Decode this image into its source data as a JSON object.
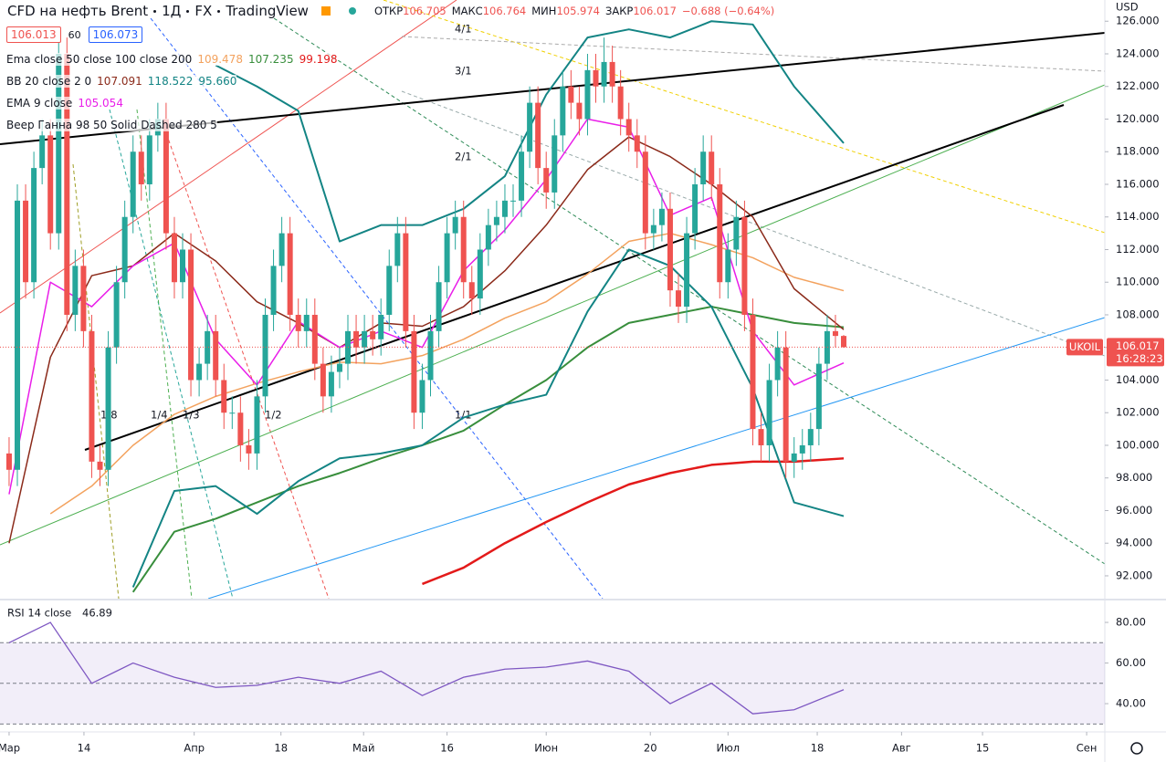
{
  "chart_data": [
    {
      "type": "candlestick",
      "title": "CFD на нефть Brent",
      "interval": "1Д",
      "exchange": "FX",
      "brand": "TradingView",
      "ohlc_keys": [
        "ОТКР",
        "МАКС",
        "МИН",
        "ЗАКР"
      ],
      "change": "−0.688 (−0.64%)",
      "bid": "106.013",
      "spread": "60",
      "ask": "106.073",
      "symbol_label": "UKOIL",
      "countdown": "16:28:23",
      "currency": "USD",
      "xlim": [
        -1.1,
        132.6
      ],
      "xticks": [
        {
          "value": 0,
          "label": "Мар"
        },
        {
          "value": 9.06,
          "label": "14"
        },
        {
          "value": 22.4,
          "label": "Апр"
        },
        {
          "value": 32.9,
          "label": "18"
        },
        {
          "value": 42.9,
          "label": "Май"
        },
        {
          "value": 53,
          "label": "16"
        },
        {
          "value": 65,
          "label": "Июн"
        },
        {
          "value": 77.6,
          "label": "20"
        },
        {
          "value": 87,
          "label": "Июл"
        },
        {
          "value": 97.8,
          "label": "18"
        },
        {
          "value": 108,
          "label": "Авг"
        },
        {
          "value": 117.8,
          "label": "15"
        },
        {
          "value": 130.4,
          "label": "Сен"
        }
      ],
      "ylim": [
        90.6,
        127.3
      ],
      "yticks": [
        {
          "value": 92,
          "label": "92.000"
        },
        {
          "value": 94,
          "label": "94.000"
        },
        {
          "value": 96,
          "label": "96.000"
        },
        {
          "value": 98,
          "label": "98.000"
        },
        {
          "value": 100,
          "label": "100.000"
        },
        {
          "value": 102,
          "label": "102.000"
        },
        {
          "value": 104,
          "label": "104.000"
        },
        {
          "value": 106,
          "label": "106.000"
        },
        {
          "value": 108,
          "label": "108.000"
        },
        {
          "value": 110,
          "label": "110.000"
        },
        {
          "value": 112,
          "label": "112.000"
        },
        {
          "value": 114,
          "label": "114.000"
        },
        {
          "value": 116,
          "label": "116.000"
        },
        {
          "value": 118,
          "label": "118.000"
        },
        {
          "value": 120,
          "label": "120.000"
        },
        {
          "value": 122,
          "label": "122.000"
        },
        {
          "value": 124,
          "label": "124.000"
        },
        {
          "value": 126,
          "label": "126.000"
        }
      ],
      "grid": false,
      "series": [
        {
          "name": "UKOIL",
          "up_color": "#26a69a",
          "down_color": "#ef5350",
          "open": [
            99.5,
            98.5,
            115,
            110,
            117,
            119,
            113,
            124,
            108,
            111,
            107,
            99,
            98.5,
            106,
            110,
            114,
            118,
            116,
            119,
            120,
            113,
            110,
            112,
            104,
            105,
            107,
            104,
            102,
            102,
            100,
            99.5,
            103,
            108,
            111,
            113,
            108,
            107,
            108,
            105,
            103,
            104.5,
            105,
            107,
            106,
            107,
            106.5,
            108,
            111,
            113,
            107,
            102,
            104,
            107,
            110,
            113,
            114,
            110,
            109,
            112,
            113.5,
            114,
            115,
            115,
            118,
            121,
            117,
            115.5,
            119,
            122,
            121,
            120,
            123,
            122,
            123.5,
            122,
            120,
            119,
            118,
            113,
            113.5,
            114.5,
            109.5,
            108.5,
            113,
            116,
            118,
            116,
            110,
            112,
            114,
            108,
            101,
            100,
            104,
            106,
            99,
            99.5,
            100,
            101,
            105,
            107,
            106.705
          ],
          "high": [
            100.5,
            116,
            116,
            118,
            120,
            120,
            125,
            125,
            112,
            112,
            108,
            100,
            107,
            111,
            115,
            119,
            119,
            120,
            121,
            121,
            114,
            113,
            113,
            106,
            108,
            108,
            105,
            103,
            103,
            101,
            104,
            109,
            112,
            114,
            114,
            109,
            109,
            109,
            106,
            105.5,
            106,
            108,
            108,
            108,
            108,
            109,
            112,
            114,
            114,
            108,
            105,
            108,
            111,
            114,
            115,
            115,
            111,
            113,
            114.5,
            115,
            116,
            116,
            119,
            122,
            122,
            118,
            120,
            123,
            123,
            122,
            124,
            124,
            125,
            124.5,
            123,
            121,
            120,
            119,
            114.5,
            115.5,
            115.5,
            110.5,
            114,
            117,
            119,
            119,
            117,
            113,
            115,
            115,
            109,
            102,
            105,
            107,
            107,
            100.5,
            101,
            102,
            106,
            108,
            108,
            106.764
          ],
          "low": [
            97.5,
            97.5,
            109,
            109,
            116,
            112,
            112,
            107,
            107,
            106,
            98,
            97.5,
            97.5,
            105,
            109,
            113,
            115,
            115,
            118,
            112,
            109,
            109,
            103,
            103,
            104,
            103,
            101,
            101,
            99,
            98.5,
            98.5,
            102,
            107,
            110,
            107,
            106,
            106,
            104,
            102,
            102,
            103.5,
            104,
            105,
            105,
            105.5,
            105.5,
            107,
            110,
            106,
            101,
            101,
            103,
            106,
            109,
            112,
            109,
            108,
            108,
            111,
            112.5,
            113,
            114,
            114,
            117,
            116,
            114.5,
            114.5,
            118,
            120,
            119,
            119,
            121,
            121,
            121,
            119,
            118,
            117,
            112,
            112,
            112.5,
            108.5,
            107.5,
            107.5,
            112,
            115,
            115,
            109,
            109,
            111,
            107,
            100,
            99,
            99,
            103,
            98,
            98,
            98.5,
            99,
            100,
            104,
            106,
            105.974
          ],
          "close": [
            98.5,
            115,
            110,
            117,
            119,
            113,
            124,
            108,
            111,
            107,
            99,
            98.5,
            106,
            110,
            114,
            118,
            116,
            119,
            120,
            113,
            110,
            112,
            104,
            105,
            107,
            104,
            102,
            102,
            100,
            99.5,
            103,
            108,
            111,
            113,
            108,
            107,
            108,
            105,
            103,
            104.5,
            105,
            107,
            106,
            107,
            106.5,
            108,
            111,
            113,
            107,
            102,
            104,
            107,
            110,
            113,
            114,
            110,
            109,
            112,
            113.5,
            114,
            115,
            115,
            118,
            121,
            117,
            115.5,
            119,
            122,
            121,
            120,
            123,
            122,
            123.5,
            122,
            120,
            119,
            118,
            113,
            113.5,
            114.5,
            109.5,
            108.5,
            113,
            116,
            118,
            116,
            110,
            112,
            114,
            108,
            101,
            100,
            104,
            106,
            99,
            99.5,
            100,
            101,
            105,
            107,
            106.705,
            106.017
          ]
        }
      ],
      "indicator_x": [
        0,
        5,
        10,
        15,
        20,
        25,
        30,
        35,
        40,
        45,
        50,
        55,
        60,
        65,
        70,
        75,
        80,
        85,
        90,
        95,
        101
      ],
      "indicators": [
        {
          "color": "#f3a25e",
          "width": 1.5,
          "values": [
            null,
            95.8,
            97.5,
            100,
            101.9,
            103,
            103.8,
            104.5,
            105.1,
            105,
            105.5,
            106.5,
            107.8,
            108.8,
            110.5,
            112.5,
            113,
            112.3,
            111.5,
            110.3,
            109.478
          ]
        },
        {
          "color": "#388e3c",
          "width": 2,
          "values": [
            null,
            null,
            null,
            91,
            94.7,
            95.5,
            96.5,
            97.5,
            98.3,
            99.2,
            100,
            100.9,
            102.5,
            104,
            106,
            107.5,
            108,
            108.5,
            108,
            107.5,
            107.235
          ]
        },
        {
          "color": "#e31a1a",
          "width": 2.5,
          "values": [
            null,
            null,
            null,
            null,
            null,
            null,
            null,
            null,
            null,
            null,
            91.5,
            92.5,
            94,
            95.3,
            96.5,
            97.6,
            98.3,
            98.8,
            99,
            99,
            99.198
          ]
        },
        {
          "color": "#8b2a1a",
          "width": 1.5,
          "values": [
            94,
            105.4,
            110.4,
            111,
            113,
            111.3,
            108.8,
            107.5,
            106,
            107.5,
            107.3,
            108.5,
            110.7,
            113.5,
            116.9,
            118.9,
            117.7,
            116,
            114,
            109.6,
            107.091
          ]
        },
        {
          "color": "#138484",
          "width": 2,
          "values": [
            null,
            null,
            null,
            null,
            null,
            123.3,
            122,
            120.5,
            112.5,
            113.5,
            113.5,
            114.5,
            116.5,
            121.5,
            125,
            125.5,
            125,
            126,
            125.8,
            122,
            118.522
          ]
        },
        {
          "color": "#138484",
          "width": 2,
          "values": [
            null,
            null,
            null,
            91.3,
            97.2,
            97.5,
            95.8,
            97.8,
            99.2,
            99.5,
            100,
            101.7,
            102.5,
            103.1,
            108.2,
            112,
            111,
            108.5,
            103.5,
            96.5,
            95.66
          ]
        },
        {
          "color": "#e91ee9",
          "width": 1.5,
          "values": [
            97,
            110,
            108.5,
            111,
            112.4,
            106.5,
            103.7,
            107.6,
            106,
            107,
            106,
            110.7,
            113.2,
            116.3,
            120,
            119.5,
            114.1,
            115.2,
            107,
            103.7,
            105.054
          ]
        }
      ],
      "legend": [
        {
          "text": "Ema close 50 close 100 close 200",
          "values": [
            {
              "label": "109.478",
              "color": "#f3a25e"
            },
            {
              "label": "107.235",
              "color": "#388e3c"
            },
            {
              "label": "99.198",
              "color": "#e31a1a"
            }
          ]
        },
        {
          "text": "BB 20 close 2 0",
          "values": [
            {
              "label": "107.091",
              "color": "#8b2a1a"
            },
            {
              "label": "118.522",
              "color": "#138484"
            },
            {
              "label": "95.660",
              "color": "#138484"
            }
          ]
        },
        {
          "text": "EMA 9 close",
          "values": [
            {
              "label": "105.054",
              "color": "#e91ee9"
            }
          ]
        },
        {
          "text": "Веер Ганна 98 50 Solid Dashed 280 5",
          "values": []
        }
      ],
      "annotations": [
        "4/1",
        "3/1",
        "2/1",
        "1/1",
        "1/2",
        "1/3",
        "1/4",
        "1/8"
      ]
    },
    {
      "type": "line",
      "title": "RSI 14 close",
      "value_label": "46.89",
      "color": "#7e57c2",
      "x": [
        0,
        5,
        10,
        15,
        20,
        25,
        30,
        35,
        40,
        45,
        50,
        55,
        60,
        65,
        70,
        75,
        80,
        85,
        90,
        95,
        101
      ],
      "values": [
        70,
        80,
        50,
        60,
        53,
        48,
        49,
        53,
        50,
        56,
        44,
        53,
        57,
        58,
        61,
        56,
        40,
        50,
        35,
        37,
        46.89
      ],
      "ylim": [
        27,
        89.9
      ],
      "yticks": [
        {
          "value": 40,
          "label": "40.00"
        },
        {
          "value": 60,
          "label": "60.00"
        },
        {
          "value": 80,
          "label": "80.00"
        }
      ],
      "bands": [
        70,
        50,
        30
      ]
    }
  ]
}
